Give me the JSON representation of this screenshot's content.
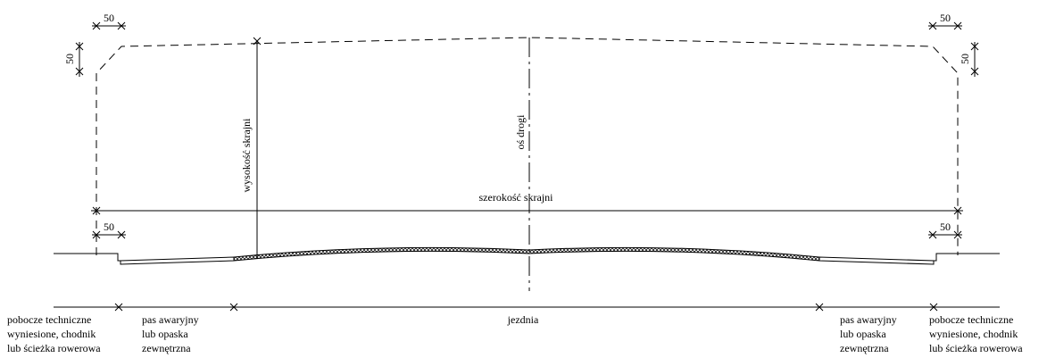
{
  "dimensions": {
    "clearance_height_label": "wysokość skrajni",
    "clearance_width_label": "szerokość skrajni",
    "road_axis_label": "oś drogi",
    "chamfer_top_left": "50",
    "chamfer_side_left": "50",
    "chamfer_top_right": "50",
    "chamfer_side_right": "50",
    "offset_left": "50",
    "offset_right": "50"
  },
  "zones": {
    "left_shoulder": [
      "pobocze techniczne",
      "wyniesione, chodnik",
      "lub ścieżka rowerowa"
    ],
    "left_lane": [
      "pas awaryjny",
      "lub opaska",
      "zewnętrzna"
    ],
    "carriageway": "jezdnia",
    "right_lane": [
      "pas awaryjny",
      "lub opaska",
      "zewnętrzna"
    ],
    "right_shoulder": [
      "pobocze techniczne",
      "wyniesione, chodnik",
      "lub ścieżka rowerowa"
    ]
  }
}
